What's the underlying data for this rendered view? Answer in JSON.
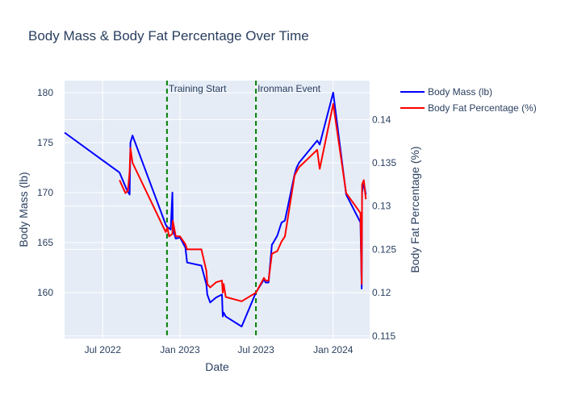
{
  "chart_data": {
    "type": "line",
    "title": "Body Mass & Body Fat Percentage Over Time",
    "xlabel": "Date",
    "ylabel": "Body Mass (lb)",
    "y2label": "Body Fat Percentage (%)",
    "x_ticks": [
      {
        "label": "Jul 2022",
        "date": "2022-07-01"
      },
      {
        "label": "Jan 2023",
        "date": "2023-01-01"
      },
      {
        "label": "Jul 2023",
        "date": "2023-07-01"
      },
      {
        "label": "Jan 2024",
        "date": "2024-01-01"
      }
    ],
    "xlim": [
      "2022-04-01",
      "2024-03-28"
    ],
    "ylim": [
      155.4,
      181.2
    ],
    "y_ticks": [
      160,
      165,
      170,
      175,
      180
    ],
    "y2lim": [
      0.1147,
      0.1445
    ],
    "y2_ticks": [
      0.115,
      0.12,
      0.125,
      0.13,
      0.135,
      0.14
    ],
    "legend_position": "right",
    "colors": {
      "body_mass": "#0000ff",
      "body_fat": "#ff0000",
      "event_lines": "#008000"
    },
    "series": [
      {
        "name": "Body Mass (lb)",
        "axis": "y",
        "x": [
          "2022-04-01",
          "2022-08-10",
          "2022-08-27",
          "2022-09-03",
          "2022-09-05",
          "2022-09-10",
          "2022-11-28",
          "2022-12-02",
          "2022-12-04",
          "2022-12-10",
          "2022-12-14",
          "2022-12-15",
          "2022-12-17",
          "2022-12-22",
          "2023-01-01",
          "2023-01-14",
          "2023-01-18",
          "2023-02-21",
          "2023-03-05",
          "2023-03-07",
          "2023-03-14",
          "2023-03-28",
          "2023-04-11",
          "2023-04-13",
          "2023-04-15",
          "2023-04-20",
          "2023-05-28",
          "2023-07-01",
          "2023-07-20",
          "2023-07-24",
          "2023-07-31",
          "2023-08-08",
          "2023-08-10",
          "2023-08-21",
          "2023-08-31",
          "2023-09-08",
          "2023-10-01",
          "2023-10-06",
          "2023-10-12",
          "2023-11-24",
          "2023-11-30",
          "2024-01-01",
          "2024-02-01",
          "2024-03-06",
          "2024-03-09",
          "2024-03-10",
          "2024-03-14",
          "2024-03-19"
        ],
        "y": [
          176.0,
          172.0,
          170.3,
          169.8,
          175.0,
          175.7,
          166.8,
          166.5,
          166.5,
          166.3,
          170.0,
          166.3,
          166.0,
          165.4,
          165.5,
          164.5,
          163.0,
          162.7,
          160.8,
          159.8,
          159.0,
          159.5,
          159.8,
          157.6,
          158.0,
          157.6,
          156.6,
          160.0,
          161.3,
          161.0,
          161.0,
          164.8,
          164.9,
          165.7,
          167.0,
          167.2,
          171.8,
          172.5,
          173.0,
          175.2,
          174.8,
          180.0,
          169.8,
          167.0,
          160.4,
          170.0,
          171.0,
          169.8
        ]
      },
      {
        "name": "Body Fat Percentage (%)",
        "axis": "y2",
        "x": [
          "2022-08-10",
          "2022-08-24",
          "2022-08-30",
          "2022-09-03",
          "2022-09-05",
          "2022-09-10",
          "2022-11-28",
          "2022-12-02",
          "2022-12-06",
          "2022-12-14",
          "2022-12-15",
          "2022-12-22",
          "2023-01-01",
          "2023-01-14",
          "2023-01-18",
          "2023-02-21",
          "2023-03-05",
          "2023-03-07",
          "2023-03-14",
          "2023-03-28",
          "2023-04-11",
          "2023-04-13",
          "2023-04-15",
          "2023-04-20",
          "2023-05-28",
          "2023-07-01",
          "2023-07-20",
          "2023-07-24",
          "2023-07-31",
          "2023-08-08",
          "2023-08-21",
          "2023-08-31",
          "2023-09-08",
          "2023-10-01",
          "2023-10-06",
          "2023-10-12",
          "2023-11-24",
          "2023-11-30",
          "2024-01-01",
          "2024-02-01",
          "2024-03-06",
          "2024-03-09",
          "2024-03-10",
          "2024-03-14",
          "2024-03-19"
        ],
        "y": [
          0.133,
          0.1315,
          0.1318,
          0.134,
          0.1367,
          0.135,
          0.127,
          0.1275,
          0.1265,
          0.1268,
          0.1283,
          0.1265,
          0.1265,
          0.1256,
          0.125,
          0.125,
          0.1225,
          0.121,
          0.1206,
          0.1212,
          0.1214,
          0.12,
          0.121,
          0.1195,
          0.119,
          0.12,
          0.1217,
          0.1214,
          0.1214,
          0.1245,
          0.1248,
          0.1259,
          0.1265,
          0.1335,
          0.134,
          0.1345,
          0.1365,
          0.1343,
          0.1418,
          0.1315,
          0.1292,
          0.121,
          0.1325,
          0.133,
          0.1308
        ]
      }
    ],
    "annotations": [
      {
        "label": "Training Start",
        "date": "2022-12-01"
      },
      {
        "label": "Ironman Event",
        "date": "2023-07-01"
      }
    ]
  }
}
